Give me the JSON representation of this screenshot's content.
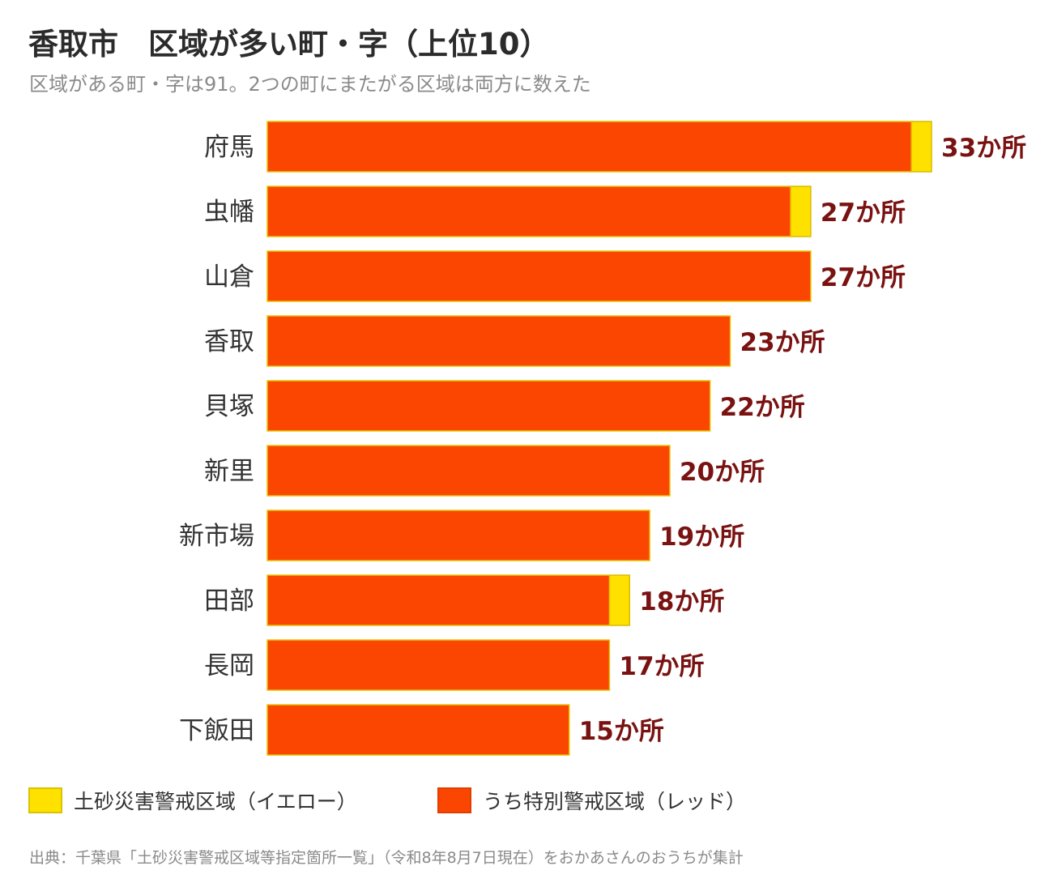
{
  "title": "香取市　区域が多い町・字（上位10）",
  "subtitle": "区域がある町・字は91。2つの町にまたがる区域は両方に数えた",
  "source": "出典：千葉県「土砂災害警戒区域等指定箇所一覧」（令和8年8月7日現在）をおかあさんのおうちが集計",
  "colors": {
    "yellow": "#FFE100",
    "red": "#FA4600",
    "label": "#7A1212",
    "category": "#333333"
  },
  "legend": {
    "yellow_label": "土砂災害警戒区域（イエロー）",
    "red_label": "うち特別警戒区域（レッド）"
  },
  "chart_data": {
    "type": "bar",
    "orientation": "horizontal",
    "stacked": true,
    "categories": [
      "府馬",
      "虫幡",
      "山倉",
      "香取",
      "貝塚",
      "新里",
      "新市場",
      "田部",
      "長岡",
      "下飯田"
    ],
    "series": [
      {
        "name": "うち特別警戒区域（レッド）",
        "values": [
          32,
          26,
          27,
          23,
          22,
          20,
          19,
          17,
          17,
          15
        ]
      },
      {
        "name": "土砂災害警戒区域（イエロー）",
        "values": [
          1,
          1,
          0,
          0,
          0,
          0,
          0,
          1,
          0,
          0
        ]
      }
    ],
    "totals": [
      33,
      27,
      27,
      23,
      22,
      20,
      19,
      18,
      17,
      15
    ],
    "value_labels": [
      "33か所",
      "27か所",
      "27か所",
      "23か所",
      "22か所",
      "20か所",
      "19か所",
      "18か所",
      "17か所",
      "15か所"
    ],
    "xlim": [
      0,
      33
    ],
    "grid": false,
    "legend_position": "bottom"
  }
}
